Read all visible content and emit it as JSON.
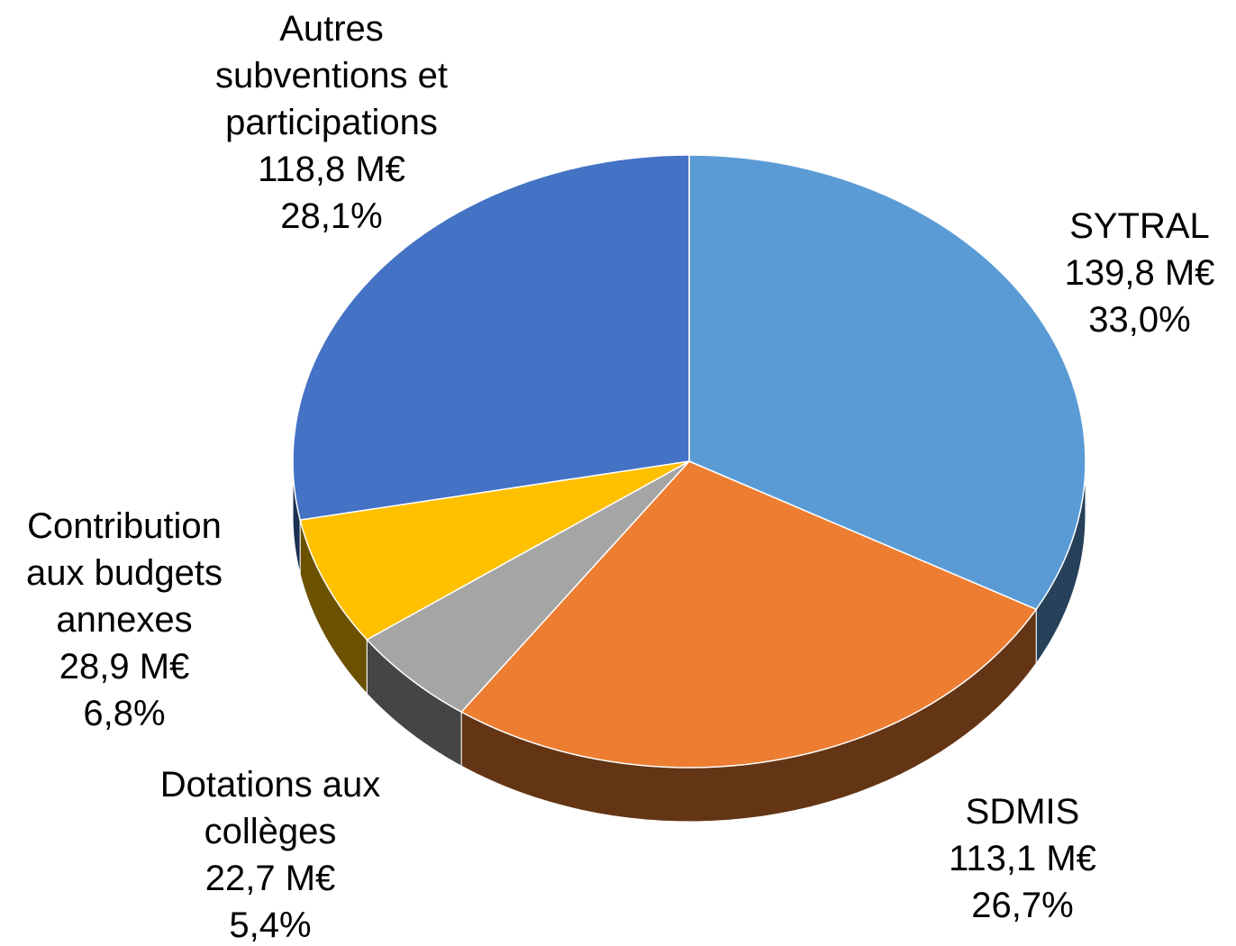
{
  "chart_data": {
    "type": "pie3d",
    "categories": [
      "SYTRAL",
      "SDMIS",
      "Dotations aux collèges",
      "Contribution aux budgets annexes",
      "Autres subventions et participations"
    ],
    "values": [
      139.8,
      113.1,
      22.7,
      28.9,
      118.8
    ],
    "value_labels": [
      "139,8 M€",
      "113,1 M€",
      "22,7 M€",
      "28,9 M€",
      "118,8 M€"
    ],
    "percentages": [
      33.0,
      26.7,
      5.4,
      6.8,
      28.1
    ],
    "percentage_labels": [
      "33,0%",
      "26,7%",
      "5,4%",
      "6,8%",
      "28,1%"
    ],
    "colors": [
      "#5b9bd5",
      "#ed7d31",
      "#a5a5a5",
      "#ffc000",
      "#4472c4"
    ]
  }
}
